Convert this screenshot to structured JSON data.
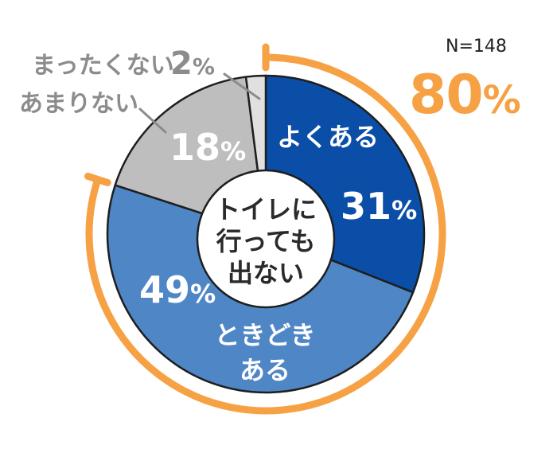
{
  "chart_data": {
    "type": "pie",
    "variant": "donut",
    "title": "トイレに行っても出ない",
    "sample_size": "N=148",
    "categories": [
      "よくある",
      "ときどきある",
      "あまりない",
      "まったくない"
    ],
    "values": [
      31,
      49,
      18,
      2
    ],
    "unit": "%",
    "colors": [
      "#0a4ea8",
      "#4f86c6",
      "#bebebe",
      "#e0e0e0"
    ],
    "start_angle_deg": 0,
    "direction": "clockwise",
    "highlight": {
      "label": "80%",
      "covers": [
        "よくある",
        "ときどきある"
      ],
      "sum": 80,
      "color": "#f7a145"
    },
    "legend": "none (labels placed on/near slices)"
  },
  "header": {
    "n_label": "N=148",
    "total_value": "80",
    "total_unit": "%"
  },
  "center": {
    "lines": [
      "トイレに",
      "行っても",
      "出ない"
    ]
  },
  "slices": [
    {
      "name": "よくある",
      "label_lines": [
        "よくある"
      ],
      "value": "31",
      "unit": "%",
      "color": "#0a4ea8"
    },
    {
      "name": "ときどきある",
      "label_lines": [
        "ときどき",
        "ある"
      ],
      "value": "49",
      "unit": "%",
      "color": "#4f86c6"
    },
    {
      "name": "あまりない",
      "label_lines": [
        "あまりない"
      ],
      "value": "18",
      "unit": "%",
      "color": "#bebebe"
    },
    {
      "name": "まったくない",
      "label_lines": [
        "まったくない"
      ],
      "value": "2",
      "unit": "%",
      "color": "#e0e0e0"
    }
  ],
  "colors": {
    "accent_orange": "#f7a145",
    "outline": "#1e1e1e",
    "leader_line": "#8c8c8c",
    "external_text": "#8c8c8c"
  }
}
